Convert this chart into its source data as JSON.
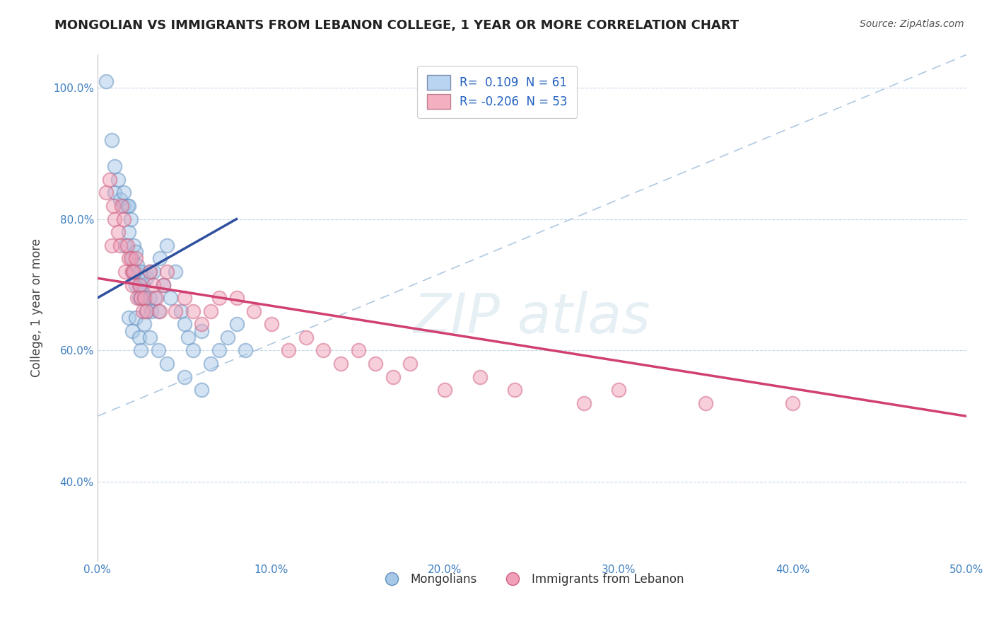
{
  "title": "MONGOLIAN VS IMMIGRANTS FROM LEBANON COLLEGE, 1 YEAR OR MORE CORRELATION CHART",
  "source": "Source: ZipAtlas.com",
  "ylabel": "College, 1 year or more",
  "xlim": [
    0.0,
    0.5
  ],
  "ylim": [
    0.28,
    1.05
  ],
  "x_ticks": [
    0.0,
    0.1,
    0.2,
    0.3,
    0.4,
    0.5
  ],
  "x_tick_labels": [
    "0.0%",
    "10.0%",
    "20.0%",
    "30.0%",
    "40.0%",
    "50.0%"
  ],
  "y_ticks": [
    0.4,
    0.6,
    0.8,
    1.0
  ],
  "y_tick_labels": [
    "40.0%",
    "60.0%",
    "80.0%",
    "100.0%"
  ],
  "mongolian_R": 0.109,
  "mongolian_N": 61,
  "lebanon_R": -0.206,
  "lebanon_N": 53,
  "scatter_blue_color": "#a8c8e8",
  "scatter_pink_color": "#f0a0b8",
  "line_blue_color": "#3050a0",
  "line_pink_color": "#d04070",
  "diag_line_color": "#b0c8e0",
  "blue_x": [
    0.005,
    0.008,
    0.01,
    0.01,
    0.012,
    0.013,
    0.015,
    0.015,
    0.016,
    0.017,
    0.018,
    0.018,
    0.019,
    0.02,
    0.02,
    0.021,
    0.022,
    0.022,
    0.022,
    0.023,
    0.024,
    0.024,
    0.025,
    0.025,
    0.025,
    0.026,
    0.027,
    0.028,
    0.028,
    0.03,
    0.03,
    0.031,
    0.032,
    0.033,
    0.035,
    0.036,
    0.038,
    0.04,
    0.042,
    0.045,
    0.048,
    0.05,
    0.052,
    0.055,
    0.06,
    0.065,
    0.07,
    0.075,
    0.08,
    0.085,
    0.018,
    0.02,
    0.022,
    0.024,
    0.025,
    0.027,
    0.03,
    0.035,
    0.04,
    0.05,
    0.06
  ],
  "blue_y": [
    1.01,
    0.92,
    0.88,
    0.84,
    0.86,
    0.83,
    0.82,
    0.84,
    0.76,
    0.82,
    0.78,
    0.82,
    0.8,
    0.74,
    0.72,
    0.76,
    0.72,
    0.7,
    0.75,
    0.73,
    0.7,
    0.68,
    0.72,
    0.7,
    0.68,
    0.7,
    0.68,
    0.71,
    0.66,
    0.72,
    0.68,
    0.66,
    0.72,
    0.68,
    0.66,
    0.74,
    0.7,
    0.76,
    0.68,
    0.72,
    0.66,
    0.64,
    0.62,
    0.6,
    0.63,
    0.58,
    0.6,
    0.62,
    0.64,
    0.6,
    0.65,
    0.63,
    0.65,
    0.62,
    0.6,
    0.64,
    0.62,
    0.6,
    0.58,
    0.56,
    0.54
  ],
  "pink_x": [
    0.005,
    0.007,
    0.008,
    0.009,
    0.01,
    0.012,
    0.013,
    0.014,
    0.015,
    0.016,
    0.017,
    0.018,
    0.019,
    0.02,
    0.02,
    0.021,
    0.022,
    0.023,
    0.024,
    0.025,
    0.026,
    0.027,
    0.028,
    0.03,
    0.032,
    0.034,
    0.036,
    0.038,
    0.04,
    0.045,
    0.05,
    0.055,
    0.06,
    0.065,
    0.07,
    0.08,
    0.09,
    0.1,
    0.11,
    0.12,
    0.13,
    0.14,
    0.15,
    0.16,
    0.17,
    0.18,
    0.2,
    0.22,
    0.24,
    0.28,
    0.3,
    0.35,
    0.4
  ],
  "pink_y": [
    0.84,
    0.86,
    0.76,
    0.82,
    0.8,
    0.78,
    0.76,
    0.82,
    0.8,
    0.72,
    0.76,
    0.74,
    0.74,
    0.72,
    0.7,
    0.72,
    0.74,
    0.68,
    0.7,
    0.68,
    0.66,
    0.68,
    0.66,
    0.72,
    0.7,
    0.68,
    0.66,
    0.7,
    0.72,
    0.66,
    0.68,
    0.66,
    0.64,
    0.66,
    0.68,
    0.68,
    0.66,
    0.64,
    0.6,
    0.62,
    0.6,
    0.58,
    0.6,
    0.58,
    0.56,
    0.58,
    0.54,
    0.56,
    0.54,
    0.52,
    0.54,
    0.52,
    0.52
  ]
}
